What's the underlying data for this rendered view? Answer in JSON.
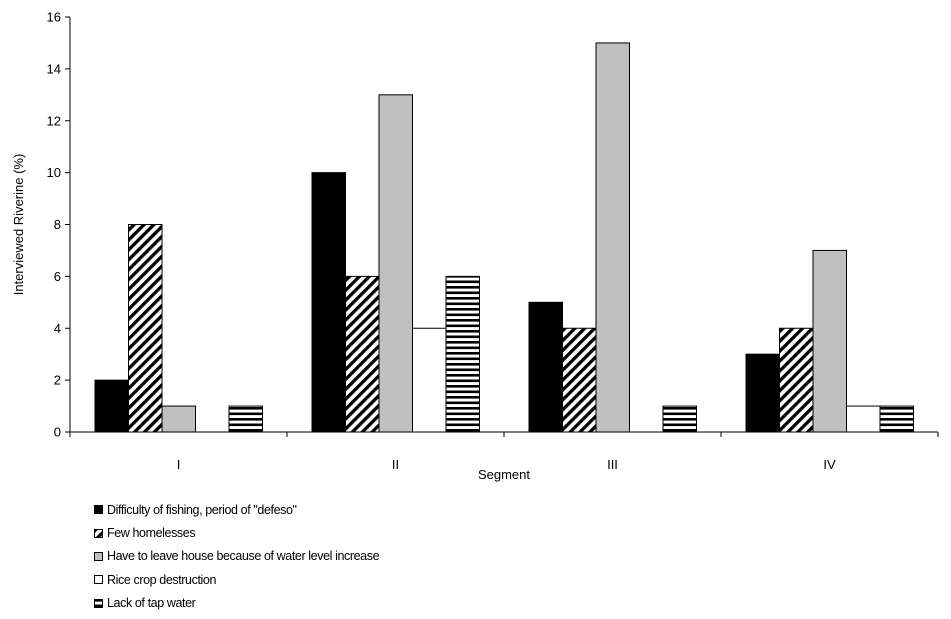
{
  "chart_data": {
    "type": "bar",
    "title": "",
    "xlabel": "Segment",
    "ylabel": "Interviewed Riverine (%)",
    "ylim": [
      0,
      16
    ],
    "yticks": [
      "0",
      "2",
      "4",
      "6",
      "8",
      "10",
      "12",
      "14",
      "16"
    ],
    "categories": [
      "I",
      "II",
      "III",
      "IV"
    ],
    "grid": false,
    "legend_position": "bottom-left",
    "series": [
      {
        "name": "Difficulty of fishing, period of \"defeso\"",
        "values": [
          2,
          10,
          5,
          3
        ],
        "pattern": "solid-black"
      },
      {
        "name": "Few homelesses",
        "values": [
          8,
          6,
          4,
          4
        ],
        "pattern": "diagonal-hatch"
      },
      {
        "name": "Have to leave house because of water level increase",
        "values": [
          1,
          13,
          15,
          7
        ],
        "pattern": "solid-gray"
      },
      {
        "name": "Rice crop destruction",
        "values": [
          0,
          4,
          0,
          1
        ],
        "pattern": "white"
      },
      {
        "name": "Lack of tap water",
        "values": [
          1,
          6,
          1,
          1
        ],
        "pattern": "horizontal-hatch"
      }
    ]
  },
  "colors": {
    "black": "#000000",
    "gray": "#c0c0c0",
    "white": "#ffffff"
  }
}
